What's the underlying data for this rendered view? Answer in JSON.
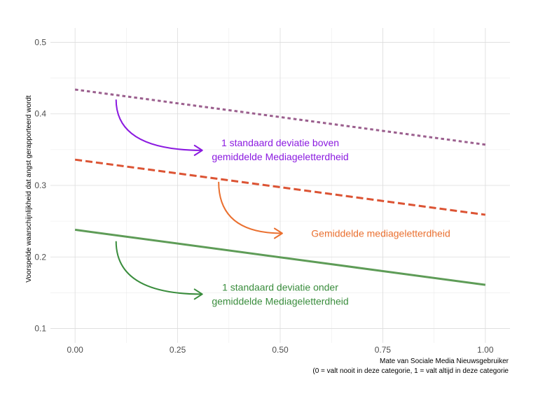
{
  "chart_data": {
    "type": "line",
    "xlabel": "Mate van Sociale Media Nieuwsgebruiker",
    "xlabel_note": "(0 = valt nooit in deze categorie, 1 = valt altijd in deze categorie",
    "ylabel": "Voorspelde waarschijnlijkheid dat angst gerapporteerd wordt",
    "xlim": [
      -0.06,
      1.06
    ],
    "ylim": [
      0.08,
      0.52
    ],
    "x_ticks": [
      0.0,
      0.25,
      0.5,
      0.75,
      1.0
    ],
    "x_tick_labels": [
      "0.00",
      "0.25",
      "0.50",
      "0.75",
      "1.00"
    ],
    "y_ticks": [
      0.1,
      0.2,
      0.3,
      0.4,
      0.5
    ],
    "y_tick_labels": [
      "0.1",
      "0.2",
      "0.3",
      "0.4",
      "0.5"
    ],
    "grid": true,
    "series": [
      {
        "key": "above",
        "x": [
          0,
          1
        ],
        "values": [
          0.434,
          0.357
        ],
        "color": "#9b5f8e",
        "dash": "dotted"
      },
      {
        "key": "mean",
        "x": [
          0,
          1
        ],
        "values": [
          0.336,
          0.259
        ],
        "color": "#dc5434",
        "dash": "dashed"
      },
      {
        "key": "below",
        "x": [
          0,
          1
        ],
        "values": [
          0.238,
          0.161
        ],
        "color": "#5e9c57",
        "dash": "solid"
      }
    ],
    "annotations": [
      {
        "key": "above",
        "lines": [
          "1 standaard deviatie boven",
          "gemiddelde Mediageletterdheid"
        ],
        "color": "#8b1ae0",
        "label_x": 0.5,
        "label_y": 0.35,
        "arrow_from": [
          0.1,
          0.42
        ],
        "arrow_to": [
          0.31,
          0.349
        ]
      },
      {
        "key": "mean",
        "lines": [
          "Gemiddelde mediageletterdheid"
        ],
        "color": "#ea7030",
        "label_x": 0.745,
        "label_y": 0.233,
        "arrow_from": [
          0.35,
          0.305
        ],
        "arrow_to": [
          0.505,
          0.233
        ]
      },
      {
        "key": "below",
        "lines": [
          "1 standaard deviatie onder",
          "gemiddelde Mediageletterdheid"
        ],
        "color": "#3a8d3d",
        "label_x": 0.5,
        "label_y": 0.148,
        "arrow_from": [
          0.1,
          0.222
        ],
        "arrow_to": [
          0.31,
          0.148
        ]
      }
    ]
  }
}
